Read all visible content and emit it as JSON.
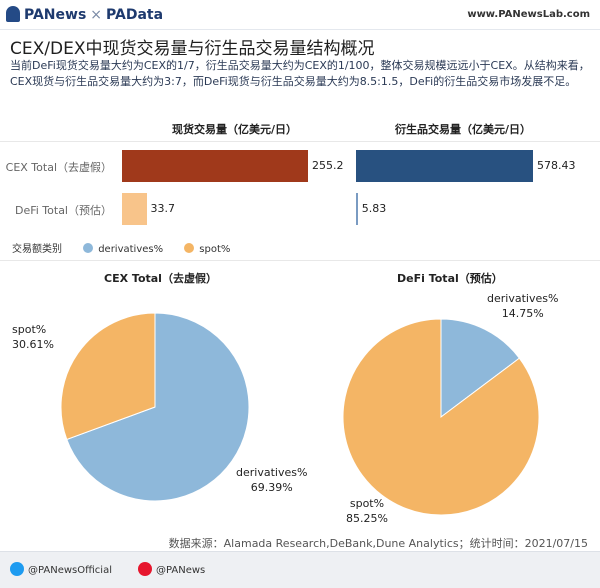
{
  "header": {
    "brand_left": "PANews",
    "separator": "×",
    "brand_right": "PAData",
    "site": "www.PANewsLab.com"
  },
  "title": "CEX/DEX中现货交易量与衍生品交易量结构概况",
  "description": "当前DeFi现货交易量大约为CEX的1/7，衍生品交易量大约为CEX的1/100，整体交易规模远远小于CEX。从结构来看，CEX现货与衍生品交易量大约为3:7，而DeFi现货与衍生品交易量大约为8.5:1.5，DeFi的衍生品交易市场发展不足。",
  "colors": {
    "spot_cex": "#a0391b",
    "spot_defi": "#f8c48a",
    "derivatives_cex": "#285180",
    "derivatives_defi": "#7a9bc2",
    "pie_derivatives": "#8eb8da",
    "pie_spot": "#f4b565"
  },
  "chart_data": [
    {
      "type": "bar",
      "orientation": "horizontal",
      "categories": [
        "CEX Total（去虚假）",
        "DeFi Total（预估）"
      ],
      "series": [
        {
          "name": "现货交易量（亿美元/日）",
          "values": [
            255.2,
            33.7
          ],
          "labels": [
            "255.2",
            "33.7"
          ]
        },
        {
          "name": "衍生品交易量（亿美元/日）",
          "values": [
            578.43,
            5.83
          ],
          "labels": [
            "578.43",
            "5.83"
          ]
        }
      ],
      "legend_title": "交易额类别",
      "legend": [
        "derivatives%",
        "spot%"
      ]
    },
    {
      "type": "pie",
      "title": "CEX Total（去虚假）",
      "slices": [
        {
          "name": "derivatives%",
          "value": 69.39,
          "label": "69.39%"
        },
        {
          "name": "spot%",
          "value": 30.61,
          "label": "30.61%"
        }
      ]
    },
    {
      "type": "pie",
      "title": "DeFi Total（预估）",
      "slices": [
        {
          "name": "derivatives%",
          "value": 14.75,
          "label": "14.75%"
        },
        {
          "name": "spot%",
          "value": 85.25,
          "label": "85.25%"
        }
      ]
    }
  ],
  "source": "数据来源：Alamada Research,DeBank,Dune Analytics；统计时间：2021/07/15",
  "footer": {
    "twitter": "@PANewsOfficial",
    "weibo": "@PANews"
  }
}
